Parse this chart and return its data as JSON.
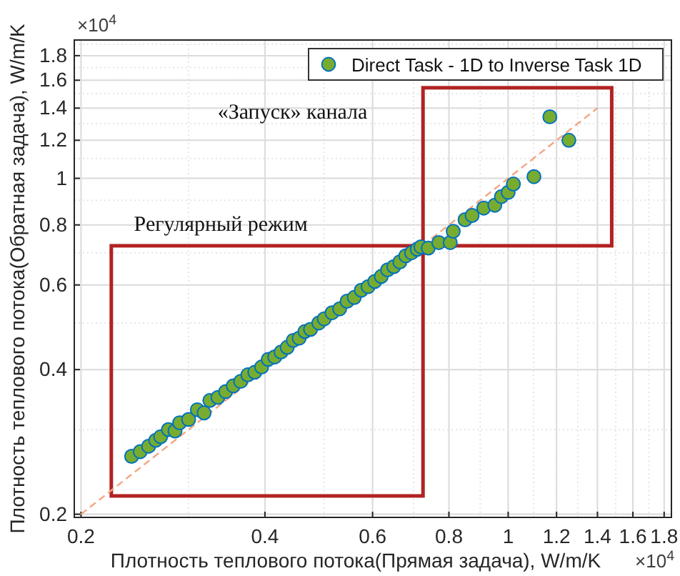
{
  "chart_data": {
    "type": "scatter",
    "xlabel": "Плотность теплового потока(Прямая задача), W/m/K",
    "ylabel": "Плотность теплового потока(Обратная задача), W/m/K",
    "annotations": [
      "Регулярный режим",
      "«Запуск» канала",
      "×10$^{4}$",
      "×10$^{4}$"
    ],
    "log": "xy",
    "grid": true,
    "legend": "top right",
    "xlim": [
      0.195,
      1.85
    ],
    "ylim": [
      0.197,
      1.94
    ],
    "xticks": [
      0.2,
      0.4,
      0.6,
      0.8,
      1,
      1.2,
      1.4,
      1.6,
      1.8
    ],
    "yticks": [
      0.2,
      0.4,
      0.6,
      0.8,
      1,
      1.2,
      1.4,
      1.6,
      1.8
    ],
    "series": [
      {
        "name": "Direct Task - 1D to Inverse Task 1D",
        "color": "#77ac30",
        "marker": "circle",
        "x": [
          0.242,
          0.25,
          0.258,
          0.265,
          0.27,
          0.278,
          0.285,
          0.29,
          0.3,
          0.31,
          0.318,
          0.325,
          0.335,
          0.345,
          0.355,
          0.365,
          0.375,
          0.385,
          0.395,
          0.405,
          0.415,
          0.425,
          0.435,
          0.445,
          0.455,
          0.465,
          0.475,
          0.49,
          0.5,
          0.515,
          0.53,
          0.545,
          0.56,
          0.575,
          0.59,
          0.605,
          0.62,
          0.635,
          0.65,
          0.665,
          0.68,
          0.695,
          0.71,
          0.72,
          0.74,
          0.77,
          0.804,
          0.813,
          0.85,
          0.873,
          0.912,
          0.951,
          0.975,
          1.0,
          1.02,
          1.102,
          1.17,
          1.257
        ],
        "values": [
          0.264,
          0.27,
          0.277,
          0.285,
          0.29,
          0.3,
          0.298,
          0.31,
          0.315,
          0.33,
          0.325,
          0.345,
          0.35,
          0.36,
          0.37,
          0.378,
          0.39,
          0.395,
          0.405,
          0.42,
          0.425,
          0.435,
          0.445,
          0.46,
          0.465,
          0.48,
          0.485,
          0.5,
          0.51,
          0.525,
          0.535,
          0.555,
          0.565,
          0.585,
          0.595,
          0.61,
          0.625,
          0.645,
          0.655,
          0.67,
          0.69,
          0.7,
          0.712,
          0.72,
          0.716,
          0.735,
          0.735,
          0.776,
          0.82,
          0.837,
          0.867,
          0.879,
          0.916,
          0.935,
          0.973,
          1.008,
          1.343,
          1.2
        ]
      },
      {
        "type": "line",
        "color": "#f4a582",
        "line_style": "dashed",
        "x": [
          0.2,
          1.4
        ],
        "values": [
          0.2,
          1.4
        ]
      }
    ]
  }
}
